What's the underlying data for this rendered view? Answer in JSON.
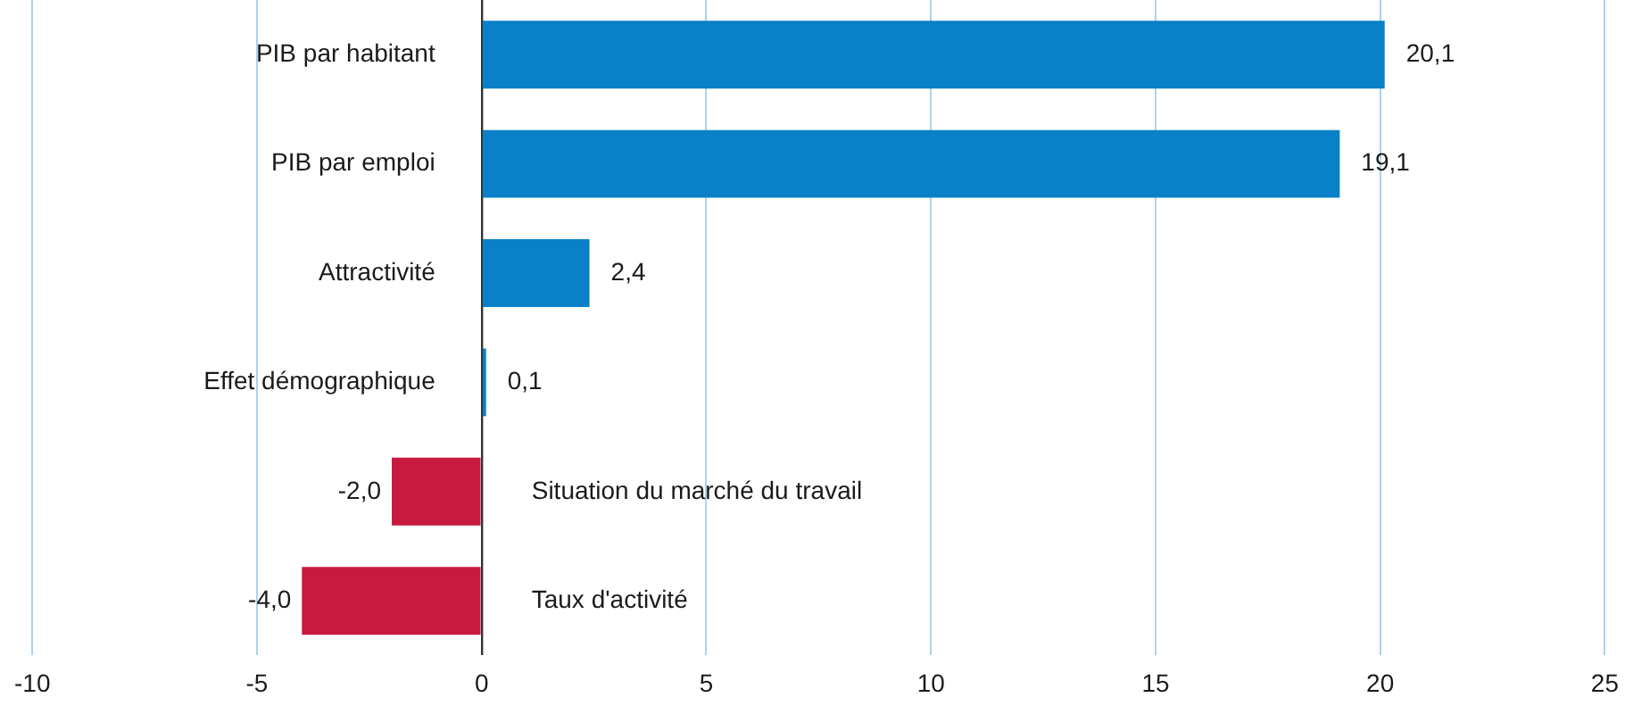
{
  "chart_data": {
    "type": "bar",
    "orientation": "horizontal",
    "categories": [
      "PIB par habitant",
      "PIB par emploi",
      "Attractivité",
      "Effet démographique",
      "Situation du marché du travail",
      "Taux d'activité"
    ],
    "values": [
      20.1,
      19.1,
      2.4,
      0.1,
      -2.0,
      -4.0
    ],
    "colors": [
      "#0a80c8",
      "#0a80c8",
      "#0a80c8",
      "#0a80c8",
      "#c8193f",
      "#c8193f"
    ],
    "value_labels": [
      "20,1",
      "19,1",
      "2,4",
      "0,1",
      "-2,0",
      "-4,0"
    ],
    "xlim": [
      -10,
      25
    ],
    "xticks": [
      -10,
      -5,
      0,
      5,
      10,
      15,
      20,
      25
    ],
    "grid": "x",
    "legend": false
  }
}
